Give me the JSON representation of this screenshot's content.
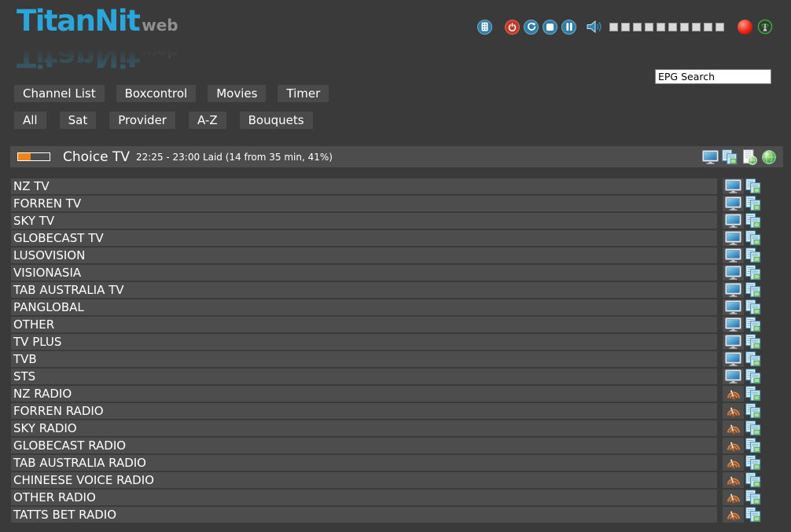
{
  "app": {
    "title": "TitanNit",
    "title_suffix": "web"
  },
  "controls": {
    "icons": [
      "remote-keypad",
      "power",
      "restart",
      "stop",
      "pause",
      "speaker"
    ],
    "volume_segments": 10,
    "indicators": [
      "record",
      "standby-antenna"
    ]
  },
  "search": {
    "value": "EPG Search"
  },
  "nav": {
    "primary": [
      "Channel List",
      "Boxcontrol",
      "Movies",
      "Timer"
    ],
    "secondary": [
      "All",
      "Sat",
      "Provider",
      "A-Z",
      "Bouquets"
    ]
  },
  "now_playing": {
    "channel": "Choice TV",
    "epg_details": "22:25 - 23:00 Laid (14 from 35 min, 41%)",
    "progress_percent": 41,
    "action_icons": [
      "tv-stream",
      "epg-list",
      "web-page",
      "globe"
    ]
  },
  "channels": [
    {
      "name": "NZ TV",
      "type": "tv"
    },
    {
      "name": "FORREN TV",
      "type": "tv"
    },
    {
      "name": "SKY TV",
      "type": "tv"
    },
    {
      "name": "GLOBECAST TV",
      "type": "tv"
    },
    {
      "name": "LUSOVISION",
      "type": "tv"
    },
    {
      "name": "VISIONASIA",
      "type": "tv"
    },
    {
      "name": "TAB AUSTRALIA TV",
      "type": "tv"
    },
    {
      "name": "PANGLOBAL",
      "type": "tv"
    },
    {
      "name": "OTHER",
      "type": "tv"
    },
    {
      "name": "TV PLUS",
      "type": "tv"
    },
    {
      "name": "TVB",
      "type": "tv"
    },
    {
      "name": "STS",
      "type": "tv"
    },
    {
      "name": "NZ RADIO",
      "type": "radio"
    },
    {
      "name": "FORREN RADIO",
      "type": "radio"
    },
    {
      "name": "SKY RADIO",
      "type": "radio"
    },
    {
      "name": "GLOBECAST RADIO",
      "type": "radio"
    },
    {
      "name": "TAB AUSTRALIA RADIO",
      "type": "radio"
    },
    {
      "name": "CHINEESE VOICE RADIO",
      "type": "radio"
    },
    {
      "name": "OTHER RADIO",
      "type": "radio"
    },
    {
      "name": "TATTS BET RADIO",
      "type": "radio"
    }
  ],
  "colors": {
    "page_bg": "#3a3a3a",
    "panel_bg": "#4d4d4d",
    "button_bg": "#4a4a4a",
    "logo_blue": "#2ba6da",
    "logo_gray": "#8f8f8f",
    "progress_orange": "#ef8418",
    "icon_blue": "#2e7da6",
    "power_red": "#bf3a28",
    "record_red": "#ea2414",
    "standby_green": "#35b335",
    "radio_orange": "#de7c33",
    "volume_square": "#d9d9d9",
    "text": "#ffffff"
  }
}
